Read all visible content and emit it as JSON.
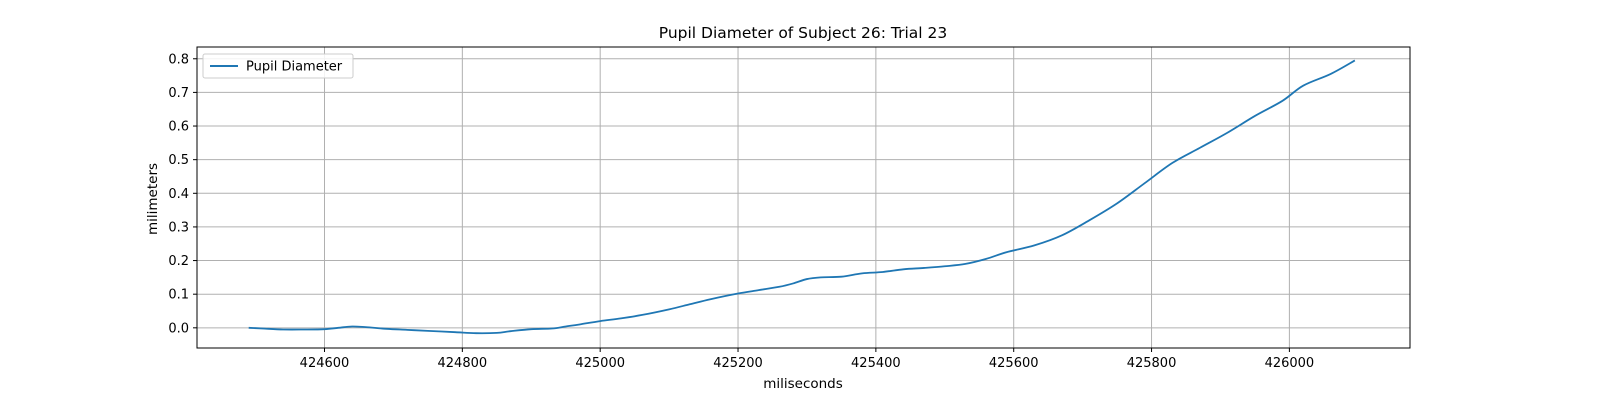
{
  "chart_data": {
    "type": "line",
    "title": "Pupil Diameter of Subject 26: Trial 23",
    "xlabel": "miliseconds",
    "ylabel": "milimeters",
    "xlim": [
      424415,
      426175
    ],
    "ylim": [
      -0.06,
      0.835
    ],
    "xticks": [
      424600,
      424800,
      425000,
      425200,
      425400,
      425600,
      425800,
      426000
    ],
    "yticks": [
      0.0,
      0.1,
      0.2,
      0.3,
      0.4,
      0.5,
      0.6,
      0.7,
      0.8
    ],
    "xtick_labels": [
      "424600",
      "424800",
      "425000",
      "425200",
      "425400",
      "425600",
      "425800",
      "426000"
    ],
    "ytick_labels": [
      "0.0",
      "0.1",
      "0.2",
      "0.3",
      "0.4",
      "0.5",
      "0.6",
      "0.7",
      "0.8"
    ],
    "grid": true,
    "legend_position": "top-left",
    "series": [
      {
        "name": "Pupil Diameter",
        "color": "#1f77b4",
        "x": [
          424490,
          424510,
          424540,
          424570,
          424600,
          424620,
          424640,
          424660,
          424690,
          424720,
          424750,
          424790,
          424820,
          424850,
          424870,
          424900,
          424930,
          424950,
          424970,
          425000,
          425030,
          425060,
          425100,
          425130,
          425160,
          425200,
          425230,
          425260,
          425280,
          425300,
          425320,
          425350,
          425380,
          425410,
          425440,
          425470,
          425500,
          425530,
          425560,
          425590,
          425630,
          425670,
          425710,
          425750,
          425790,
          425830,
          425870,
          425910,
          425950,
          425990,
          426020,
          426060,
          426095
        ],
        "y": [
          0.0,
          -0.002,
          -0.005,
          -0.005,
          -0.004,
          0.0,
          0.004,
          0.002,
          -0.003,
          -0.006,
          -0.009,
          -0.013,
          -0.016,
          -0.015,
          -0.01,
          -0.004,
          -0.002,
          0.004,
          0.01,
          0.02,
          0.028,
          0.038,
          0.055,
          0.07,
          0.085,
          0.102,
          0.112,
          0.122,
          0.132,
          0.145,
          0.15,
          0.152,
          0.162,
          0.166,
          0.174,
          0.178,
          0.183,
          0.19,
          0.205,
          0.225,
          0.245,
          0.275,
          0.32,
          0.37,
          0.43,
          0.49,
          0.535,
          0.58,
          0.63,
          0.675,
          0.72,
          0.755,
          0.795
        ]
      }
    ]
  }
}
